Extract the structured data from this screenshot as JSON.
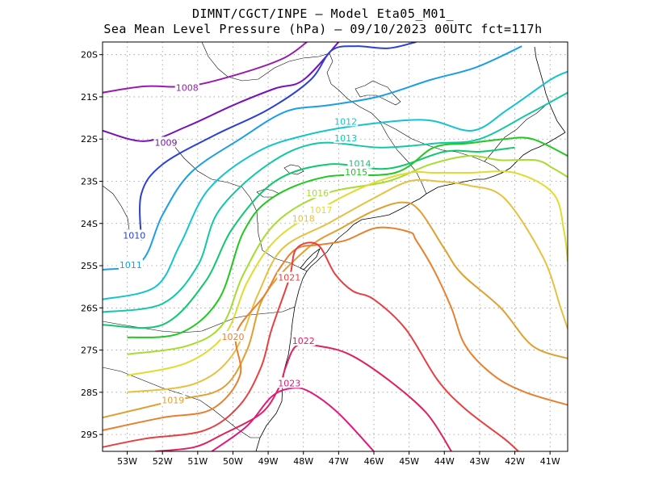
{
  "header": {
    "line1": "DIMNT/CGCT/INPE –  Model Eta05_M01_",
    "line2": "Sea Mean Level Pressure (hPa) – 09/10/2023 00UTC fct=117h"
  },
  "colors": {
    "1008": "#9a1ab0",
    "1009": "#7a10b8",
    "1010": "#2a40d8",
    "1011": "#1a9ee8",
    "1012": "#14c4d0",
    "1013": "#10c8a8",
    "1014": "#10c870",
    "1015": "#20c820",
    "1016": "#a8dc30",
    "1017": "#e0dc30",
    "1018": "#e8c040",
    "1019": "#e0a030",
    "1020": "#e88030",
    "1021": "#e84040",
    "1022": "#e02060",
    "1023": "#e01880"
  },
  "chart_data": {
    "type": "contour-map",
    "variable": "Sea Mean Level Pressure (hPa)",
    "lon_range": [
      -53.7,
      -40.5
    ],
    "lat_range": [
      -29.4,
      -19.7
    ],
    "x_ticks": [
      "53W",
      "52W",
      "51W",
      "50W",
      "49W",
      "48W",
      "47W",
      "46W",
      "45W",
      "44W",
      "43W",
      "42W",
      "41W"
    ],
    "y_ticks": [
      "20S",
      "21S",
      "22S",
      "23S",
      "24S",
      "25S",
      "26S",
      "27S",
      "28S",
      "29S"
    ],
    "grid": true,
    "isobars": [
      {
        "level": "1008",
        "label": "1008",
        "label_at": [
          -51.3,
          -20.8
        ],
        "points": [
          [
            -53.7,
            -20.9
          ],
          [
            -52.5,
            -20.75
          ],
          [
            -51.3,
            -20.75
          ],
          [
            -50.0,
            -20.5
          ],
          [
            -48.6,
            -20.1
          ],
          [
            -47.9,
            -19.7
          ]
        ]
      },
      {
        "level": "1009",
        "label": "1009",
        "label_at": [
          -51.9,
          -22.1
        ],
        "points": [
          [
            -53.7,
            -21.8
          ],
          [
            -52.5,
            -22.05
          ],
          [
            -51.3,
            -21.7
          ],
          [
            -50.0,
            -21.2
          ],
          [
            -48.8,
            -20.8
          ],
          [
            -48.0,
            -20.6
          ],
          [
            -47.0,
            -19.7
          ]
        ]
      },
      {
        "level": "1010",
        "label": "1010",
        "label_at": [
          -52.8,
          -24.3
        ],
        "points": [
          [
            -52.6,
            -24.4
          ],
          [
            -52.6,
            -23.3
          ],
          [
            -52.0,
            -22.6
          ],
          [
            -50.5,
            -21.9
          ],
          [
            -49.0,
            -21.3
          ],
          [
            -47.8,
            -20.6
          ],
          [
            -47.2,
            -19.9
          ],
          [
            -46.5,
            -19.8
          ],
          [
            -45.6,
            -19.85
          ],
          [
            -44.8,
            -19.7
          ]
        ]
      },
      {
        "level": "1011",
        "label": "1011",
        "label_at": [
          -52.9,
          -25.0
        ],
        "points": [
          [
            -53.7,
            -25.1
          ],
          [
            -52.6,
            -24.9
          ],
          [
            -52.0,
            -23.8
          ],
          [
            -51.2,
            -22.8
          ],
          [
            -49.8,
            -22.0
          ],
          [
            -48.5,
            -21.35
          ],
          [
            -47.3,
            -21.2
          ],
          [
            -45.9,
            -21.0
          ],
          [
            -44.4,
            -20.6
          ],
          [
            -43.1,
            -20.3
          ],
          [
            -41.8,
            -19.8
          ]
        ]
      },
      {
        "level": "1012",
        "label": "1012",
        "label_at": [
          -46.8,
          -21.6
        ],
        "points": [
          [
            -53.7,
            -25.8
          ],
          [
            -52.2,
            -25.5
          ],
          [
            -51.5,
            -24.5
          ],
          [
            -50.7,
            -23.2
          ],
          [
            -49.3,
            -22.3
          ],
          [
            -47.9,
            -21.9
          ],
          [
            -46.2,
            -21.65
          ],
          [
            -44.5,
            -21.55
          ],
          [
            -43.2,
            -21.8
          ],
          [
            -42.2,
            -21.3
          ],
          [
            -41.0,
            -20.6
          ],
          [
            -40.5,
            -20.4
          ]
        ]
      },
      {
        "level": "1013",
        "label": "1013",
        "label_at": [
          -46.8,
          -22.0
        ],
        "points": [
          [
            -53.7,
            -26.1
          ],
          [
            -52.0,
            -25.9
          ],
          [
            -51.0,
            -25.0
          ],
          [
            -50.4,
            -23.7
          ],
          [
            -49.0,
            -22.6
          ],
          [
            -47.6,
            -22.1
          ],
          [
            -45.8,
            -22.2
          ],
          [
            -44.2,
            -22.1
          ],
          [
            -43.0,
            -22.0
          ],
          [
            -41.6,
            -21.4
          ],
          [
            -40.5,
            -20.9
          ]
        ]
      },
      {
        "level": "1014",
        "label": "1014",
        "label_at": [
          -46.4,
          -22.6
        ],
        "points": [
          [
            -53.7,
            -26.4
          ],
          [
            -52.0,
            -26.4
          ],
          [
            -50.8,
            -25.4
          ],
          [
            -50.0,
            -24.1
          ],
          [
            -48.8,
            -23.0
          ],
          [
            -47.3,
            -22.6
          ],
          [
            -45.6,
            -22.7
          ],
          [
            -44.0,
            -22.3
          ],
          [
            -43.0,
            -22.3
          ],
          [
            -42.0,
            -22.2
          ]
        ]
      },
      {
        "level": "1015",
        "label": "1015",
        "label_at": [
          -46.5,
          -22.8
        ],
        "points": [
          [
            -53.0,
            -26.7
          ],
          [
            -51.5,
            -26.6
          ],
          [
            -50.4,
            -25.8
          ],
          [
            -49.7,
            -24.2
          ],
          [
            -48.9,
            -23.4
          ],
          [
            -47.4,
            -22.9
          ],
          [
            -45.4,
            -22.8
          ],
          [
            -44.3,
            -22.2
          ],
          [
            -43.3,
            -22.1
          ],
          [
            -42.3,
            -22.0
          ],
          [
            -41.5,
            -22.0
          ],
          [
            -40.5,
            -22.4
          ]
        ]
      },
      {
        "level": "1016",
        "label": "1016",
        "label_at": [
          -47.6,
          -23.3
        ],
        "points": [
          [
            -53.0,
            -27.1
          ],
          [
            -51.3,
            -26.9
          ],
          [
            -50.3,
            -26.4
          ],
          [
            -49.7,
            -25.2
          ],
          [
            -48.8,
            -24.0
          ],
          [
            -47.4,
            -23.3
          ],
          [
            -45.6,
            -23.0
          ],
          [
            -44.4,
            -22.6
          ],
          [
            -43.3,
            -22.4
          ],
          [
            -42.4,
            -22.5
          ],
          [
            -41.4,
            -22.5
          ],
          [
            -40.9,
            -22.7
          ],
          [
            -40.5,
            -22.9
          ]
        ]
      },
      {
        "level": "1017",
        "label": "1017",
        "label_at": [
          -47.5,
          -23.7
        ],
        "points": [
          [
            -53.0,
            -27.6
          ],
          [
            -51.3,
            -27.3
          ],
          [
            -50.2,
            -26.6
          ],
          [
            -49.6,
            -25.4
          ],
          [
            -48.8,
            -24.4
          ],
          [
            -47.6,
            -23.7
          ],
          [
            -46.2,
            -23.1
          ],
          [
            -45.0,
            -22.8
          ],
          [
            -44.3,
            -22.8
          ],
          [
            -43.3,
            -22.8
          ],
          [
            -42.0,
            -22.8
          ],
          [
            -40.9,
            -23.3
          ],
          [
            -40.6,
            -24.2
          ],
          [
            -40.5,
            -24.9
          ]
        ]
      },
      {
        "level": "1018",
        "label": "1018",
        "label_at": [
          -48.0,
          -23.9
        ],
        "points": [
          [
            -53.0,
            -28.0
          ],
          [
            -51.1,
            -27.8
          ],
          [
            -50.0,
            -27.1
          ],
          [
            -49.3,
            -25.7
          ],
          [
            -48.6,
            -24.6
          ],
          [
            -47.3,
            -24.0
          ],
          [
            -46.0,
            -23.4
          ],
          [
            -45.0,
            -23.0
          ],
          [
            -44.2,
            -23.0
          ],
          [
            -43.3,
            -23.1
          ],
          [
            -42.3,
            -23.4
          ],
          [
            -41.2,
            -24.8
          ],
          [
            -40.7,
            -26.0
          ],
          [
            -40.5,
            -26.5
          ]
        ]
      },
      {
        "level": "1019",
        "label": "1019",
        "label_at": [
          -51.7,
          -28.2
        ],
        "points": [
          [
            -53.7,
            -28.6
          ],
          [
            -51.7,
            -28.2
          ],
          [
            -50.3,
            -27.9
          ],
          [
            -49.6,
            -27.0
          ],
          [
            -49.1,
            -25.7
          ],
          [
            -47.9,
            -24.6
          ],
          [
            -46.9,
            -24.1
          ],
          [
            -46.0,
            -23.7
          ],
          [
            -45.2,
            -23.5
          ],
          [
            -44.7,
            -23.7
          ],
          [
            -44.0,
            -24.6
          ],
          [
            -43.5,
            -25.2
          ],
          [
            -42.4,
            -26.0
          ],
          [
            -41.5,
            -26.9
          ],
          [
            -40.5,
            -27.2
          ]
        ]
      },
      {
        "level": "1020",
        "label": "1020",
        "label_at": [
          -50.0,
          -26.7
        ],
        "points": [
          [
            -53.7,
            -28.9
          ],
          [
            -52.0,
            -28.6
          ],
          [
            -50.6,
            -28.4
          ],
          [
            -49.8,
            -27.6
          ],
          [
            -49.9,
            -26.6
          ],
          [
            -49.1,
            -25.7
          ],
          [
            -48.7,
            -25.1
          ],
          [
            -48.2,
            -24.6
          ],
          [
            -47.5,
            -24.5
          ],
          [
            -46.8,
            -24.4
          ],
          [
            -45.9,
            -24.1
          ],
          [
            -45.0,
            -24.2
          ],
          [
            -44.8,
            -24.4
          ],
          [
            -44.3,
            -25.1
          ],
          [
            -43.8,
            -26.0
          ],
          [
            -43.4,
            -26.9
          ],
          [
            -42.6,
            -27.6
          ],
          [
            -41.7,
            -28.0
          ],
          [
            -40.5,
            -28.3
          ]
        ]
      },
      {
        "level": "1021",
        "label": "1021",
        "label_at": [
          -48.4,
          -25.3
        ],
        "points": [
          [
            -53.7,
            -29.3
          ],
          [
            -52.5,
            -29.1
          ],
          [
            -50.8,
            -28.9
          ],
          [
            -49.8,
            -28.3
          ],
          [
            -49.2,
            -27.4
          ],
          [
            -48.9,
            -26.5
          ],
          [
            -48.4,
            -25.3
          ],
          [
            -48.2,
            -24.6
          ],
          [
            -47.6,
            -24.5
          ],
          [
            -47.1,
            -25.2
          ],
          [
            -46.6,
            -25.6
          ],
          [
            -46.0,
            -25.8
          ],
          [
            -45.1,
            -26.5
          ],
          [
            -44.2,
            -27.7
          ],
          [
            -43.4,
            -28.4
          ],
          [
            -42.3,
            -29.1
          ],
          [
            -41.9,
            -29.4
          ]
        ]
      },
      {
        "level": "1022",
        "label": "1022",
        "label_at": [
          -48.0,
          -26.8
        ],
        "points": [
          [
            -52.2,
            -29.4
          ],
          [
            -51.1,
            -29.3
          ],
          [
            -50.3,
            -29.0
          ],
          [
            -49.2,
            -28.5
          ],
          [
            -48.7,
            -27.9
          ],
          [
            -48.5,
            -27.4
          ],
          [
            -48.2,
            -26.9
          ],
          [
            -47.6,
            -26.9
          ],
          [
            -46.7,
            -27.1
          ],
          [
            -45.6,
            -27.7
          ],
          [
            -44.5,
            -28.5
          ],
          [
            -43.8,
            -29.4
          ]
        ]
      },
      {
        "level": "1023",
        "label": "1023",
        "label_at": [
          -48.4,
          -27.8
        ],
        "points": [
          [
            -50.6,
            -29.4
          ],
          [
            -49.6,
            -28.8
          ],
          [
            -48.9,
            -28.1
          ],
          [
            -48.3,
            -27.9
          ],
          [
            -47.8,
            -28.0
          ],
          [
            -47.0,
            -28.5
          ],
          [
            -46.0,
            -29.4
          ]
        ]
      }
    ]
  }
}
